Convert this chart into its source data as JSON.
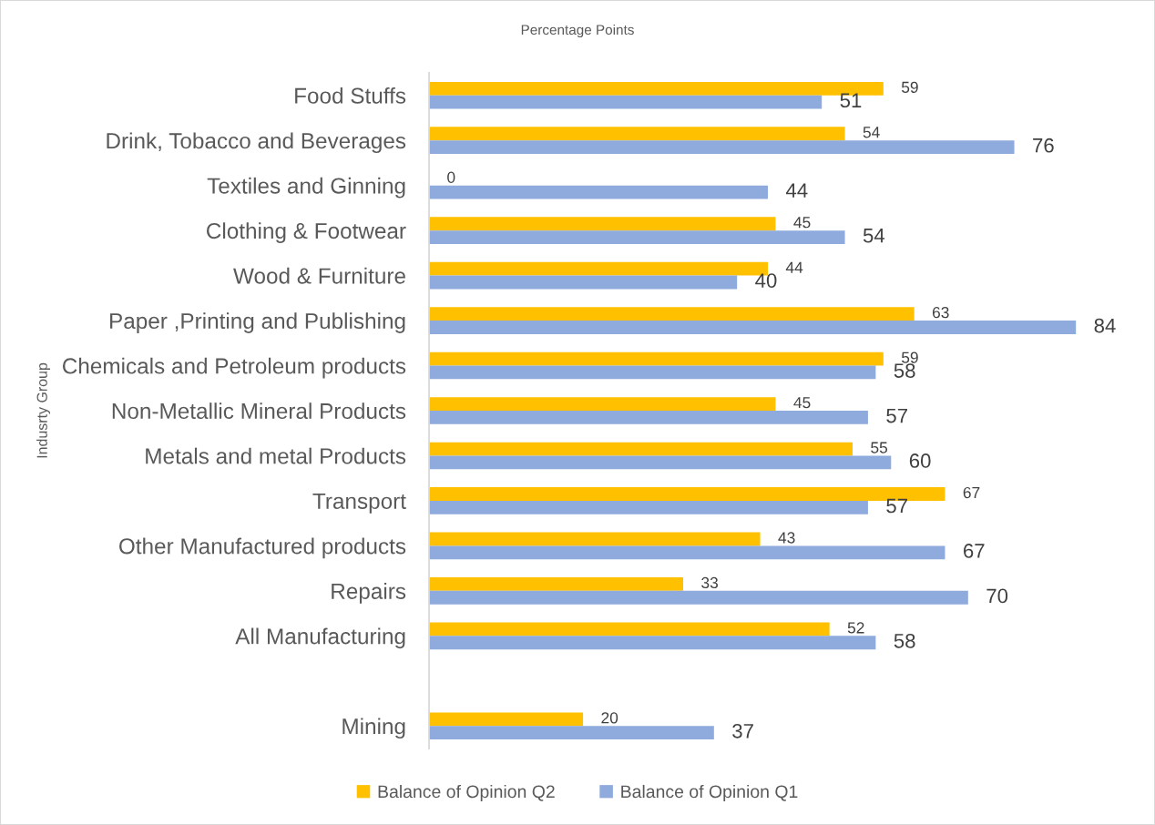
{
  "chart_data": {
    "type": "bar",
    "orientation": "horizontal",
    "title": "Percentage Points",
    "ylabel": "Indusrty Group",
    "categories": [
      "Food Stuffs",
      "Drink, Tobacco and Beverages",
      "Textiles and Ginning",
      "Clothing & Footwear",
      "Wood & Furniture",
      "Paper ,Printing and Publishing",
      "Chemicals and Petroleum products",
      "Non-Metallic Mineral Products",
      "Metals and metal Products",
      "Transport",
      "Other Manufactured products",
      "Repairs",
      "All Manufacturing",
      null,
      "Mining"
    ],
    "series": [
      {
        "name": "Balance of Opinion Q2",
        "color": "#ffc000",
        "values": [
          59,
          54,
          0,
          45,
          44,
          63,
          59,
          45,
          55,
          67,
          43,
          33,
          52,
          null,
          20
        ]
      },
      {
        "name": "Balance of Opinion Q1",
        "color": "#8faadc",
        "values": [
          51,
          76,
          44,
          54,
          40,
          84,
          58,
          57,
          60,
          57,
          67,
          70,
          58,
          null,
          37
        ]
      }
    ],
    "data_labels": true,
    "legend": "bottom",
    "tick_labels": "y"
  }
}
